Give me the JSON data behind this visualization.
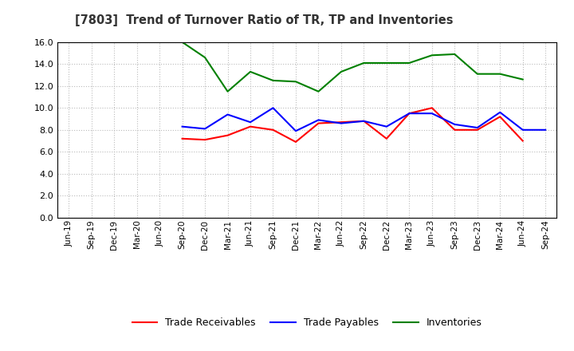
{
  "title": "[7803]  Trend of Turnover Ratio of TR, TP and Inventories",
  "x_labels": [
    "Jun-19",
    "Sep-19",
    "Dec-19",
    "Mar-20",
    "Jun-20",
    "Sep-20",
    "Dec-20",
    "Mar-21",
    "Jun-21",
    "Sep-21",
    "Dec-21",
    "Mar-22",
    "Jun-22",
    "Sep-22",
    "Dec-22",
    "Mar-23",
    "Jun-23",
    "Sep-23",
    "Dec-23",
    "Mar-24",
    "Jun-24",
    "Sep-24"
  ],
  "trade_receivables": [
    null,
    null,
    null,
    null,
    null,
    7.2,
    7.1,
    7.5,
    8.3,
    8.0,
    6.9,
    8.6,
    8.7,
    8.8,
    7.2,
    9.5,
    10.0,
    8.0,
    8.0,
    9.2,
    7.0,
    null
  ],
  "trade_payables": [
    null,
    null,
    null,
    null,
    null,
    8.3,
    8.1,
    9.4,
    8.7,
    10.0,
    7.9,
    8.9,
    8.6,
    8.8,
    8.3,
    9.5,
    9.5,
    8.5,
    8.2,
    9.6,
    8.0,
    8.0
  ],
  "inventories": [
    null,
    null,
    null,
    null,
    null,
    16.0,
    14.6,
    11.5,
    13.3,
    12.5,
    12.4,
    11.5,
    13.3,
    14.1,
    14.1,
    14.1,
    14.8,
    14.9,
    13.1,
    13.1,
    12.6,
    null
  ],
  "ylim": [
    0.0,
    16.0
  ],
  "yticks": [
    0.0,
    2.0,
    4.0,
    6.0,
    8.0,
    10.0,
    12.0,
    14.0,
    16.0
  ],
  "color_tr": "#ff0000",
  "color_tp": "#0000ff",
  "color_inv": "#008000",
  "background_color": "#ffffff",
  "grid_color": "#aaaaaa",
  "legend_labels": [
    "Trade Receivables",
    "Trade Payables",
    "Inventories"
  ]
}
